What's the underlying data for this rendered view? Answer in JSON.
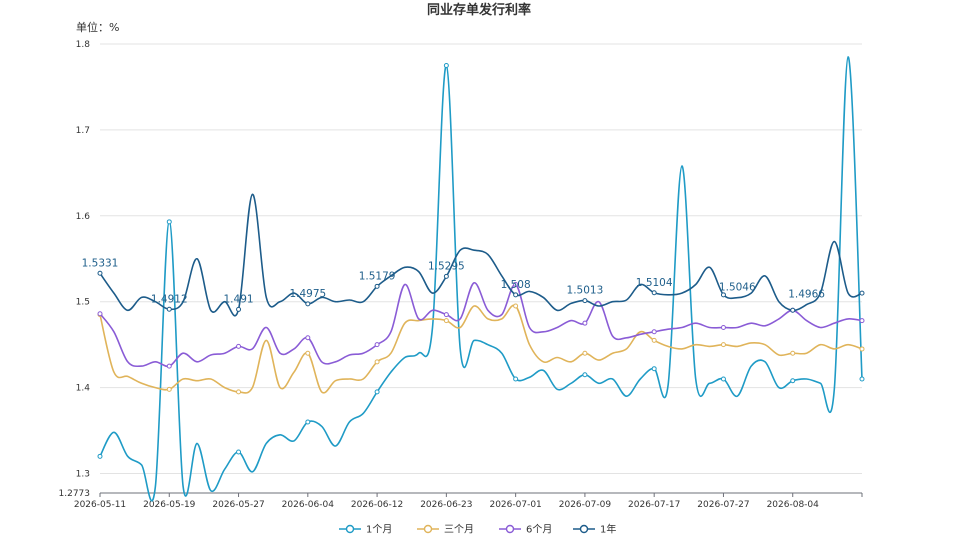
{
  "chart_data": {
    "type": "line",
    "title": "同业存单发行利率",
    "unit_label": "单位：%",
    "ylim": [
      1.2773,
      1.8
    ],
    "y_ticks": [
      1.2773,
      1.3,
      1.4,
      1.5,
      1.6,
      1.7,
      1.8
    ],
    "x_tick_labels": [
      "2026-05-11",
      "2026-05-19",
      "2026-05-27",
      "2026-06-04",
      "2026-06-12",
      "2026-06-23",
      "2026-07-01",
      "2026-07-09",
      "2026-07-17",
      "2026-07-27",
      "2026-08-04"
    ],
    "grid": "horizontal",
    "legend_position": "bottom",
    "data_label_series": "1年",
    "series": [
      {
        "name": "1个月",
        "color": "#1f9bc6",
        "values": [
          1.32,
          1.348,
          1.32,
          1.31,
          1.285,
          1.593,
          1.285,
          1.335,
          1.28,
          1.305,
          1.325,
          1.302,
          1.335,
          1.345,
          1.338,
          1.36,
          1.355,
          1.332,
          1.36,
          1.37,
          1.395,
          1.418,
          1.435,
          1.44,
          1.47,
          1.775,
          1.445,
          1.455,
          1.45,
          1.44,
          1.41,
          1.412,
          1.42,
          1.398,
          1.405,
          1.415,
          1.405,
          1.41,
          1.39,
          1.41,
          1.422,
          1.402,
          1.658,
          1.41,
          1.405,
          1.41,
          1.39,
          1.425,
          1.43,
          1.4,
          1.408,
          1.41,
          1.405,
          1.398,
          1.785,
          1.41
        ]
      },
      {
        "name": "三个月",
        "color": "#e0b45a",
        "values": [
          1.485,
          1.418,
          1.413,
          1.405,
          1.4,
          1.398,
          1.41,
          1.408,
          1.41,
          1.4,
          1.395,
          1.4,
          1.455,
          1.4,
          1.418,
          1.44,
          1.395,
          1.408,
          1.41,
          1.41,
          1.43,
          1.44,
          1.475,
          1.478,
          1.48,
          1.478,
          1.47,
          1.495,
          1.48,
          1.48,
          1.495,
          1.45,
          1.43,
          1.435,
          1.43,
          1.44,
          1.432,
          1.44,
          1.445,
          1.465,
          1.455,
          1.448,
          1.445,
          1.45,
          1.448,
          1.45,
          1.448,
          1.452,
          1.45,
          1.438,
          1.44,
          1.44,
          1.45,
          1.445,
          1.45,
          1.445
        ]
      },
      {
        "name": "6个月",
        "color": "#8a5cd6",
        "values": [
          1.486,
          1.465,
          1.43,
          1.425,
          1.43,
          1.425,
          1.44,
          1.43,
          1.438,
          1.44,
          1.448,
          1.445,
          1.47,
          1.44,
          1.445,
          1.458,
          1.43,
          1.43,
          1.438,
          1.44,
          1.45,
          1.465,
          1.52,
          1.48,
          1.49,
          1.485,
          1.48,
          1.522,
          1.49,
          1.485,
          1.52,
          1.47,
          1.465,
          1.47,
          1.478,
          1.475,
          1.5,
          1.46,
          1.458,
          1.462,
          1.465,
          1.468,
          1.47,
          1.475,
          1.47,
          1.47,
          1.47,
          1.475,
          1.472,
          1.48,
          1.49,
          1.478,
          1.47,
          1.475,
          1.48,
          1.478
        ]
      },
      {
        "name": "1年",
        "color": "#1d5c8a",
        "values": [
          1.5331,
          1.51,
          1.49,
          1.505,
          1.5,
          1.4912,
          1.5,
          1.55,
          1.49,
          1.5,
          1.491,
          1.625,
          1.505,
          1.5,
          1.51,
          1.4975,
          1.505,
          1.5,
          1.502,
          1.5,
          1.5179,
          1.53,
          1.54,
          1.535,
          1.51,
          1.5295,
          1.56,
          1.56,
          1.555,
          1.53,
          1.508,
          1.512,
          1.505,
          1.49,
          1.498,
          1.5013,
          1.495,
          1.5,
          1.502,
          1.52,
          1.5104,
          1.508,
          1.51,
          1.52,
          1.54,
          1.508,
          1.5046,
          1.51,
          1.53,
          1.5,
          1.49,
          1.4966,
          1.51,
          1.57,
          1.51,
          1.51
        ]
      }
    ],
    "data_labels": [
      {
        "index": 0,
        "text": "1.5331"
      },
      {
        "index": 5,
        "text": "1.4912"
      },
      {
        "index": 10,
        "text": "1.491"
      },
      {
        "index": 15,
        "text": "1.4975"
      },
      {
        "index": 20,
        "text": "1.5179"
      },
      {
        "index": 25,
        "text": "1.5295"
      },
      {
        "index": 30,
        "text": "1.508"
      },
      {
        "index": 35,
        "text": "1.5013"
      },
      {
        "index": 40,
        "text": "1.5104"
      },
      {
        "index": 46,
        "text": "1.5046"
      },
      {
        "index": 51,
        "text": "1.4966"
      }
    ],
    "marker_every": 5
  }
}
